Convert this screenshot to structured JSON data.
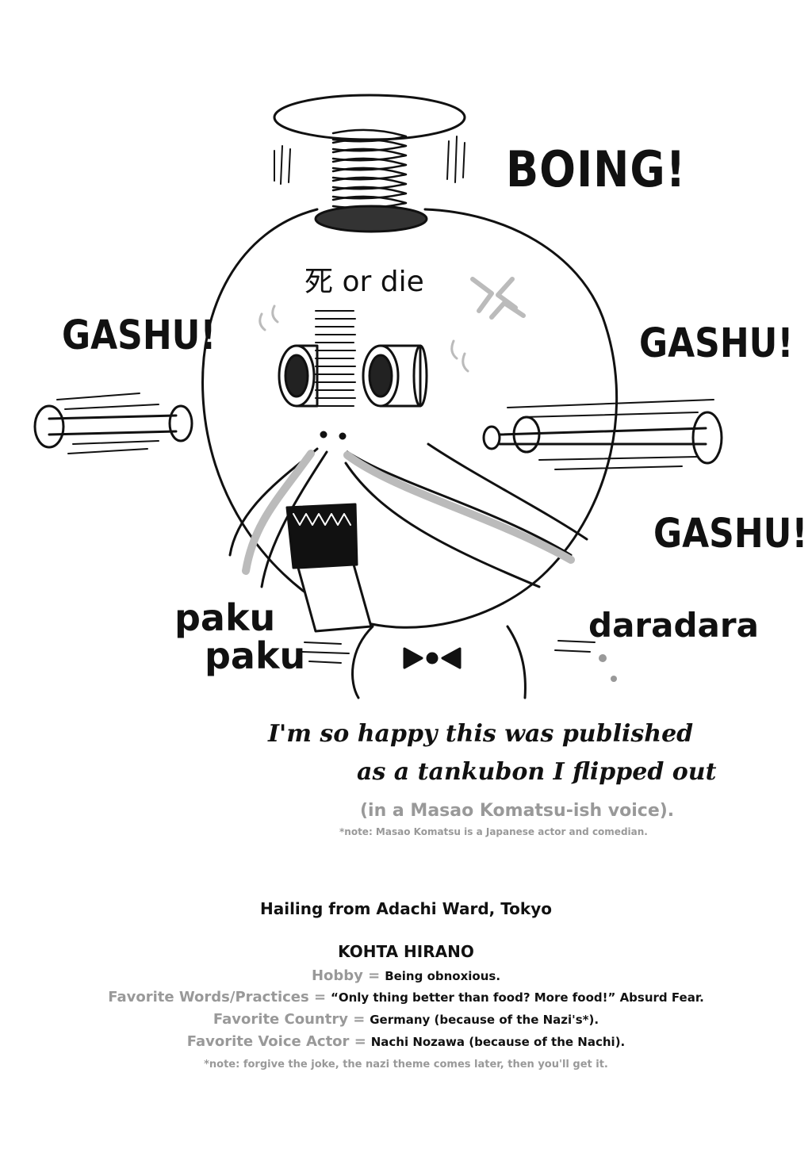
{
  "sfx": {
    "boing": "BOING!",
    "gashu_left": "GASHU!",
    "gashu_right": "GASHU!",
    "gashu_lower": "GASHU!",
    "paku_1": "paku",
    "paku_2": "paku",
    "daradara": "daradara",
    "head_label": "死 or die"
  },
  "comment": {
    "line_1": "I'm so happy this was published",
    "line_2": "as a tankubon I flipped out",
    "voice": "(in a Masao Komatsu-ish voice).",
    "note": "*note: Masao Komatsu is a Japanese actor and comedian."
  },
  "profile": {
    "hailing": "Hailing from Adachi Ward, Tokyo",
    "name": "KOHTA HIRANO",
    "hobby_label": "Hobby =",
    "hobby_value": "Being obnoxious.",
    "words_label": "Favorite Words/Practices =",
    "words_value": "“Only thing better than food? More food!” Absurd Fear.",
    "country_label": "Favorite Country =",
    "country_value": "Germany (because of the Nazi's*).",
    "voice_label": "Favorite Voice Actor =",
    "voice_value": "Nachi Nozawa (because of the Nachi).",
    "footnote": "*note: forgive the joke, the nazi theme comes later, then you'll get it."
  },
  "colors": {
    "ink": "#111111",
    "gray_text": "#999999",
    "shading": "#b5b5b5"
  }
}
